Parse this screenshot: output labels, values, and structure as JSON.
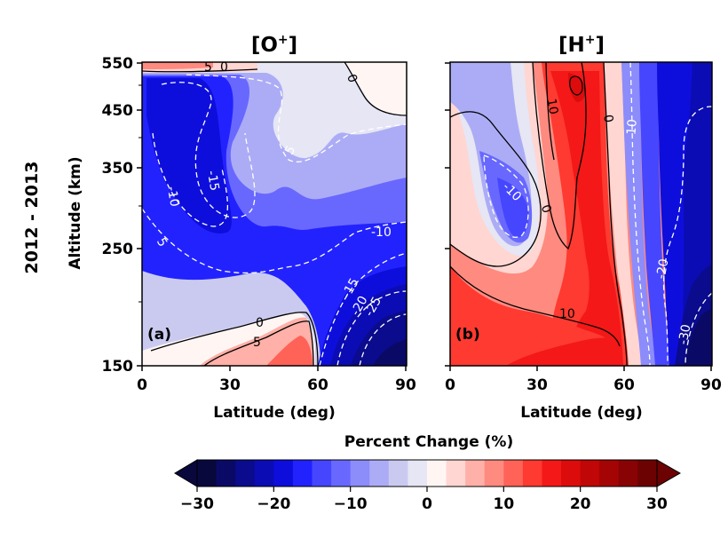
{
  "row_label": "2012 - 2013",
  "chart_data": [
    {
      "type": "heatmap",
      "panel_label": "(a)",
      "title_base": "[O",
      "title_sup": "+",
      "title_end": "]",
      "xlabel": "Latitude (deg)",
      "ylabel": "Altitude (km)",
      "xlim": [
        0,
        90
      ],
      "x_ticks": [
        "0",
        "30",
        "60",
        "90"
      ],
      "y_ticks": [
        "150",
        "250",
        "350",
        "450",
        "550"
      ],
      "contour_labels": [
        "5",
        "0",
        "0",
        "-15",
        "-10",
        "5",
        "5",
        "-10",
        "-15",
        "-20",
        "-25",
        "0",
        "5"
      ]
    },
    {
      "type": "heatmap",
      "panel_label": "(b)",
      "title_base": "[H",
      "title_sup": "+",
      "title_end": "]",
      "xlabel": "Latitude (deg)",
      "ylabel": "Altitude (km)",
      "xlim": [
        0,
        90
      ],
      "x_ticks": [
        "0",
        "30",
        "60",
        "90"
      ],
      "y_ticks": [
        "150",
        "250",
        "350",
        "450",
        "550"
      ],
      "contour_labels": [
        "10",
        "0",
        "10",
        "-10",
        "0",
        "-20",
        "10",
        "-30"
      ]
    }
  ],
  "colorbar": {
    "label": "Percent Change (%)",
    "range": [
      -30,
      30
    ],
    "ticks": [
      "−30",
      "−20",
      "−10",
      "0",
      "10",
      "20",
      "30"
    ],
    "colors": [
      "#08083d",
      "#0a0a66",
      "#0b0b8d",
      "#0c0cb4",
      "#0e0edc",
      "#2222ff",
      "#4646ff",
      "#6868ff",
      "#8c8cfb",
      "#acacf6",
      "#cacaf1",
      "#e6e6f4",
      "#fff6f4",
      "#ffd6d1",
      "#ffb0a8",
      "#ff8a80",
      "#ff6257",
      "#ff3a30",
      "#f41818",
      "#dc0c0c",
      "#c00606",
      "#a40404",
      "#880303",
      "#6c0202"
    ]
  }
}
